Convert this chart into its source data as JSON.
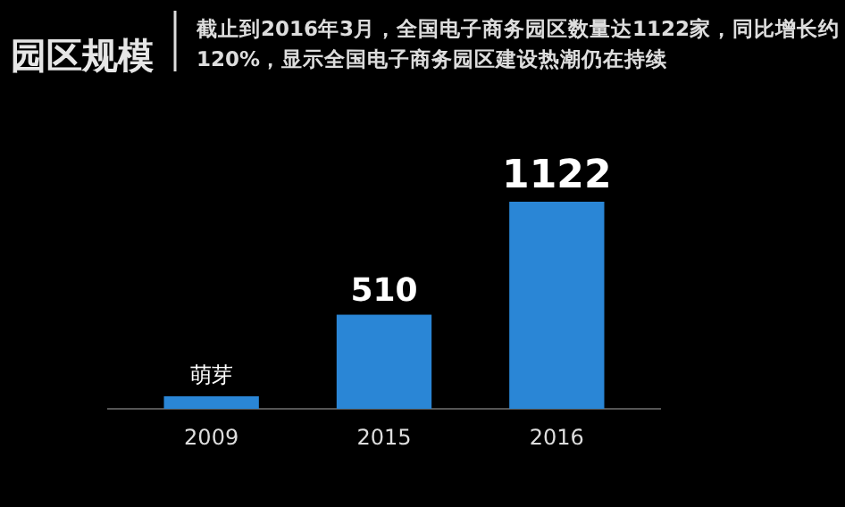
{
  "chart_data": {
    "type": "bar",
    "title": "园区规模",
    "subtitle": "截止到2016年3月，全国电子商务园区数量达1122家，同比增长约120%，显示全国电子商务园区建设热潮仍在持续",
    "categories": [
      "2009",
      "2015",
      "2016"
    ],
    "values": [
      68,
      510,
      1122
    ],
    "value_labels": [
      "萌芽",
      "510",
      "1122"
    ],
    "color": "#2a86d6"
  }
}
